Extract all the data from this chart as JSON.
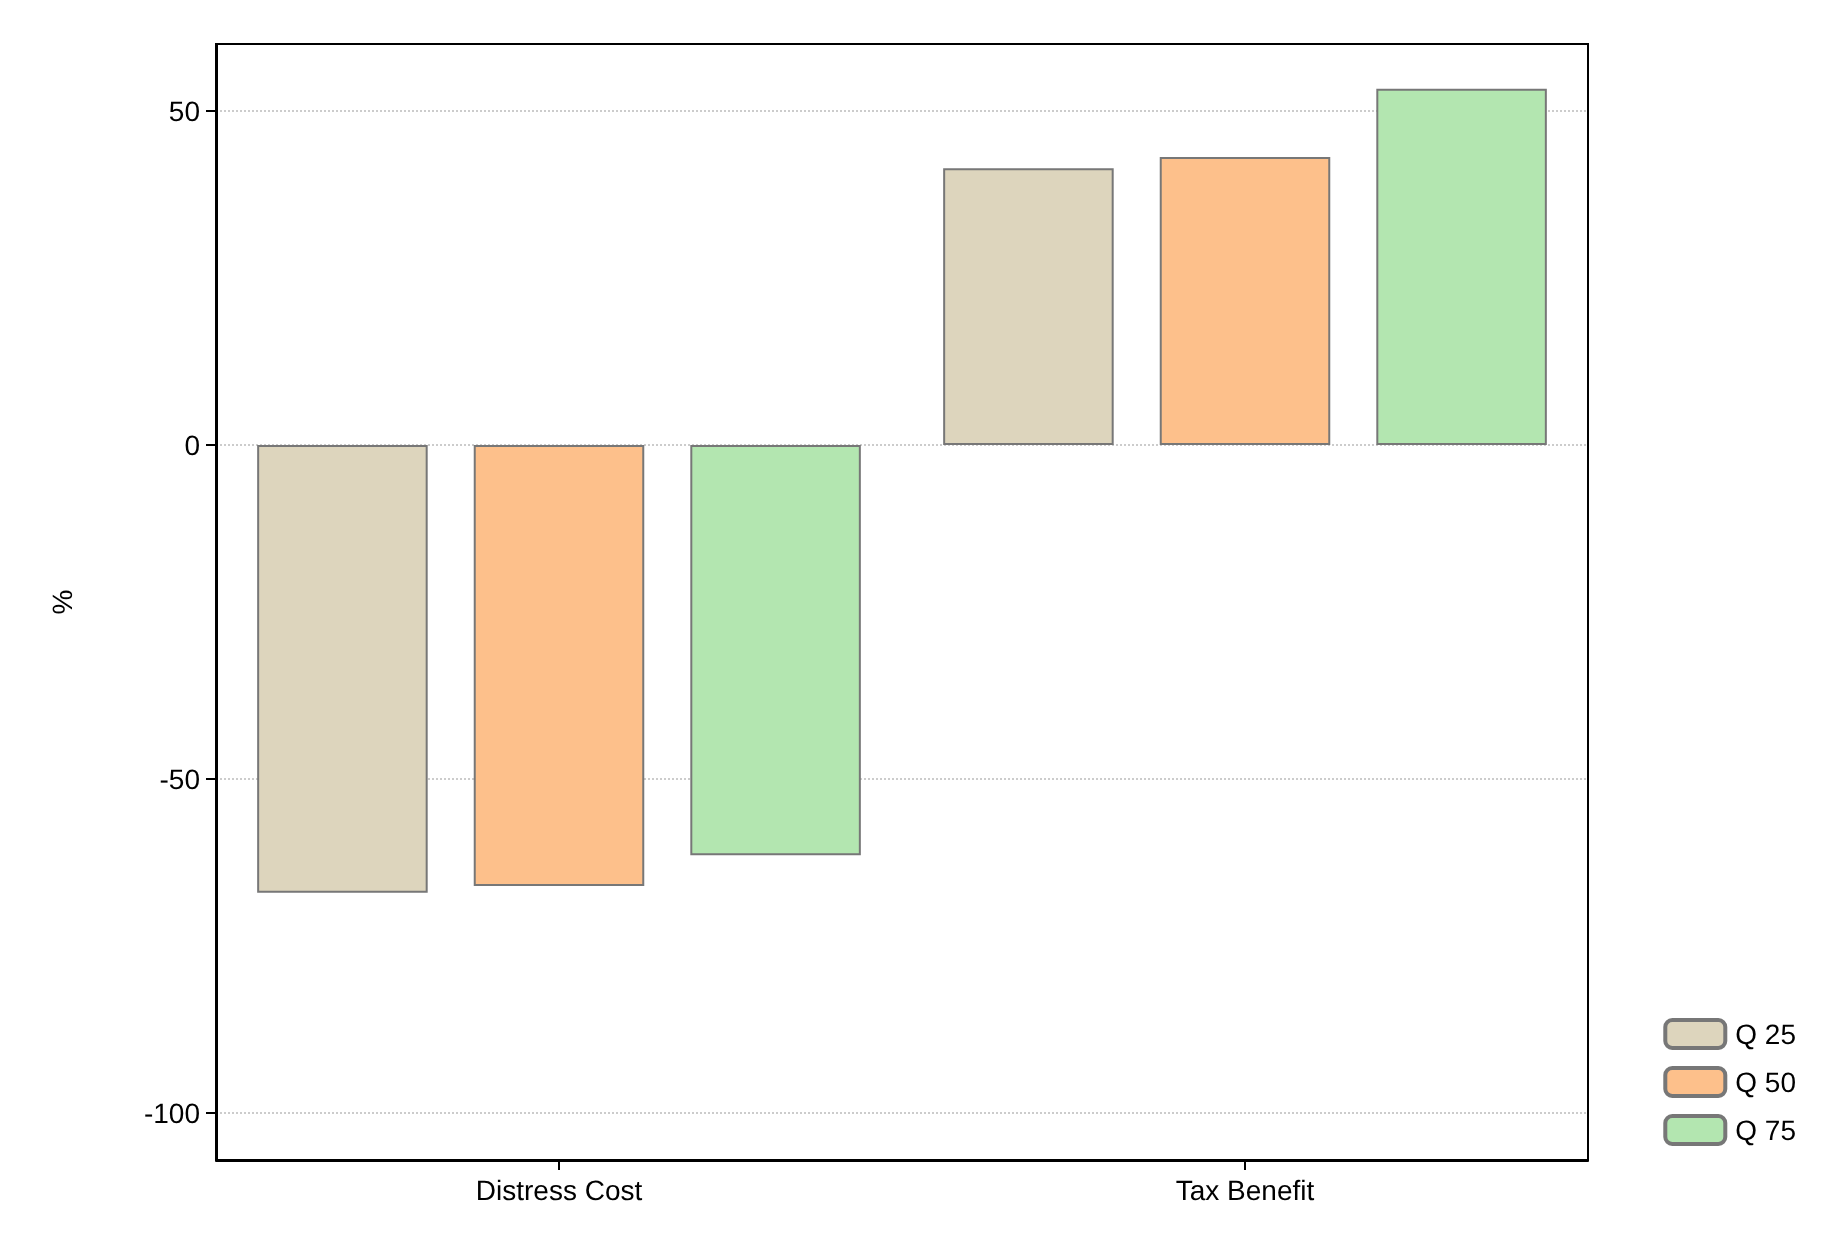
{
  "chart_data": {
    "type": "bar",
    "ylabel": "%",
    "categories": [
      "Distress Cost",
      "Tax Benefit"
    ],
    "series": [
      {
        "name": "Q 25",
        "color": "#ddd5bd",
        "values": [
          -67,
          41.4
        ]
      },
      {
        "name": "Q 50",
        "color": "#fdc08b",
        "values": [
          -66,
          43.1
        ]
      },
      {
        "name": "Q 75",
        "color": "#b3e6b0",
        "values": [
          -61.4,
          53.3
        ]
      }
    ],
    "ylim": [
      -107,
      60
    ],
    "yticks": [
      -100,
      -50,
      0,
      50
    ],
    "grid": "y",
    "legend": "bottom right"
  }
}
